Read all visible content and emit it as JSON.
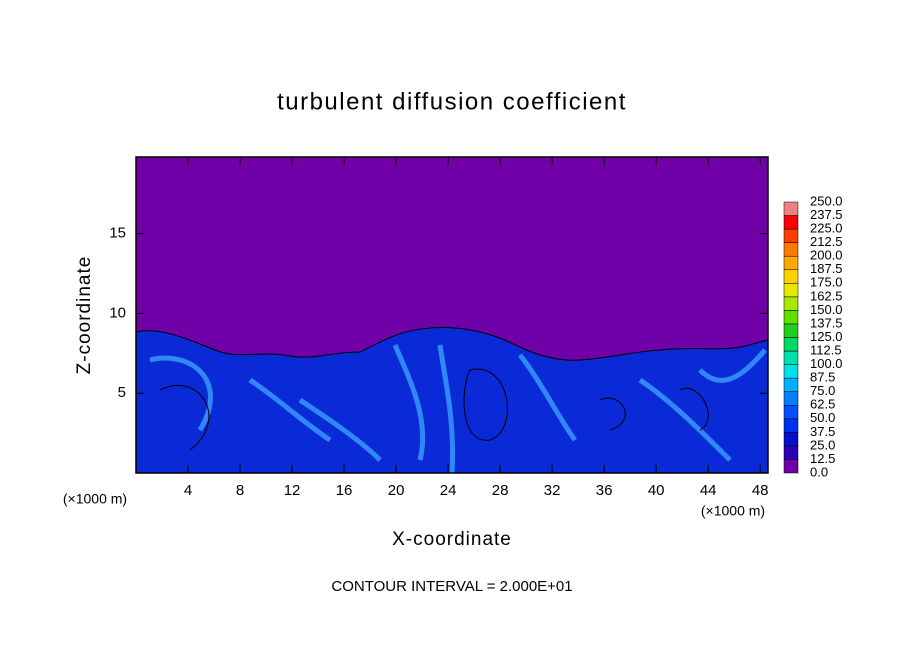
{
  "chart_data": {
    "type": "contour",
    "title": "turbulent diffusion coefficient",
    "x_label": "X-coordinate",
    "y_label": "Z-coordinate",
    "x_unit": "(×1000 m)",
    "y_unit": "(×1000 m)",
    "footnote": "CONTOUR INTERVAL = 2.000E+01",
    "xlim": [
      0,
      48.6
    ],
    "ylim": [
      0,
      19.8
    ],
    "xticks": [
      4,
      8,
      12,
      16,
      20,
      24,
      28,
      32,
      36,
      40,
      44,
      48
    ],
    "yticks": [
      5,
      10,
      15
    ],
    "colorbar": {
      "levels": [
        {
          "value": 0,
          "label": "0.0"
        },
        12.5,
        {
          "value": 25,
          "label": "25.0"
        },
        37.5,
        {
          "value": 50,
          "label": "50.0"
        },
        62.5,
        {
          "value": 75,
          "label": "75.0"
        },
        87.5,
        {
          "value": 100,
          "label": "100.0"
        },
        112.5,
        {
          "value": 125,
          "label": "125.0"
        },
        137.5,
        {
          "value": 150,
          "label": "150.0"
        },
        162.5,
        {
          "value": 175,
          "label": "175.0"
        },
        187.5,
        {
          "value": 200,
          "label": "200.0"
        },
        212.5,
        {
          "value": 225,
          "label": "225.0"
        },
        237.5,
        {
          "value": 250,
          "label": "250.0"
        }
      ],
      "colors": [
        "#7000a8",
        "#2a00b4",
        "#0010cc",
        "#0030ee",
        "#0050ff",
        "#0080ff",
        "#00b0ff",
        "#00e0e8",
        "#00e0a8",
        "#00d868",
        "#20d020",
        "#60e000",
        "#a8e800",
        "#e8e800",
        "#ffd000",
        "#ffa800",
        "#ff7800",
        "#ff3c00",
        "#ff0000",
        "#f08080"
      ]
    }
  }
}
